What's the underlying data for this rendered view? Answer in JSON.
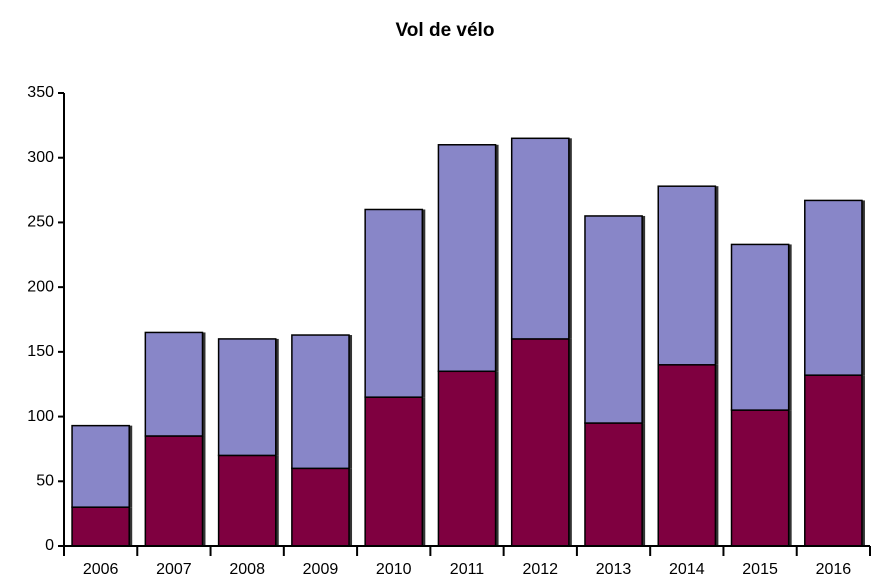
{
  "chart_data": {
    "type": "stacked_bar",
    "title": "Vol de vélo",
    "categories": [
      "2006",
      "2007",
      "2008",
      "2009",
      "2010",
      "2011",
      "2012",
      "2013",
      "2014",
      "2015",
      "2016"
    ],
    "series": [
      {
        "color": "#7f0040",
        "values": [
          30,
          85,
          70,
          60,
          115,
          135,
          160,
          95,
          140,
          105,
          132
        ]
      },
      {
        "color": "#8886c8",
        "values": [
          63,
          80,
          90,
          103,
          145,
          175,
          155,
          160,
          138,
          128,
          135
        ]
      }
    ],
    "ylim": [
      0,
      350
    ],
    "yticks": [
      0,
      50,
      100,
      150,
      200,
      250,
      300,
      350
    ]
  }
}
